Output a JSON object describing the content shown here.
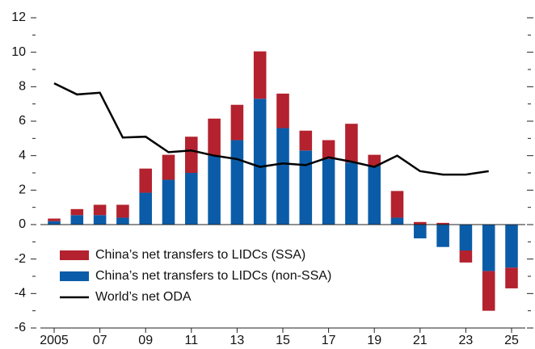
{
  "chart_data": {
    "type": "bar",
    "categories": [
      "2005",
      null,
      "07",
      null,
      "09",
      null,
      "11",
      null,
      "13",
      null,
      "15",
      null,
      "17",
      null,
      "19",
      null,
      "21",
      null,
      "23",
      null,
      "25"
    ],
    "series": [
      {
        "name": "China’s net transfers to LIDCs (non-SSA)",
        "color": "#0b5ca8",
        "type": "bar",
        "values": [
          0.2,
          0.55,
          0.55,
          0.4,
          1.85,
          2.6,
          3.0,
          4.0,
          4.9,
          7.3,
          5.6,
          4.3,
          3.8,
          3.6,
          3.4,
          0.4,
          -0.8,
          -1.3,
          -1.5,
          -2.7,
          -2.5
        ]
      },
      {
        "name": "China’s net transfers to LIDCs (SSA)",
        "color": "#b3222e",
        "type": "bar",
        "values": [
          0.15,
          0.35,
          0.6,
          0.75,
          1.4,
          1.45,
          2.1,
          2.15,
          2.05,
          2.75,
          2.0,
          1.15,
          1.1,
          2.25,
          0.65,
          1.55,
          0.15,
          0.1,
          -0.7,
          -2.3,
          -1.2
        ]
      },
      {
        "name": "World’s net ODA",
        "color": "#000000",
        "type": "line",
        "values": [
          8.2,
          7.55,
          7.65,
          5.05,
          5.1,
          4.2,
          4.3,
          4.0,
          3.8,
          3.35,
          3.55,
          3.45,
          3.9,
          3.65,
          3.35,
          4.0,
          3.1,
          2.9,
          2.9,
          3.1,
          null
        ]
      }
    ],
    "legend_order": [
      1,
      0,
      2
    ],
    "ylim": [
      -6,
      12
    ],
    "yticks": [
      -6,
      -4,
      -2,
      0,
      2,
      4,
      6,
      8,
      10,
      12
    ],
    "yticks_minor": [
      -5,
      -3,
      -1,
      1,
      3,
      5,
      7,
      9,
      11
    ],
    "legend": "lower left"
  }
}
